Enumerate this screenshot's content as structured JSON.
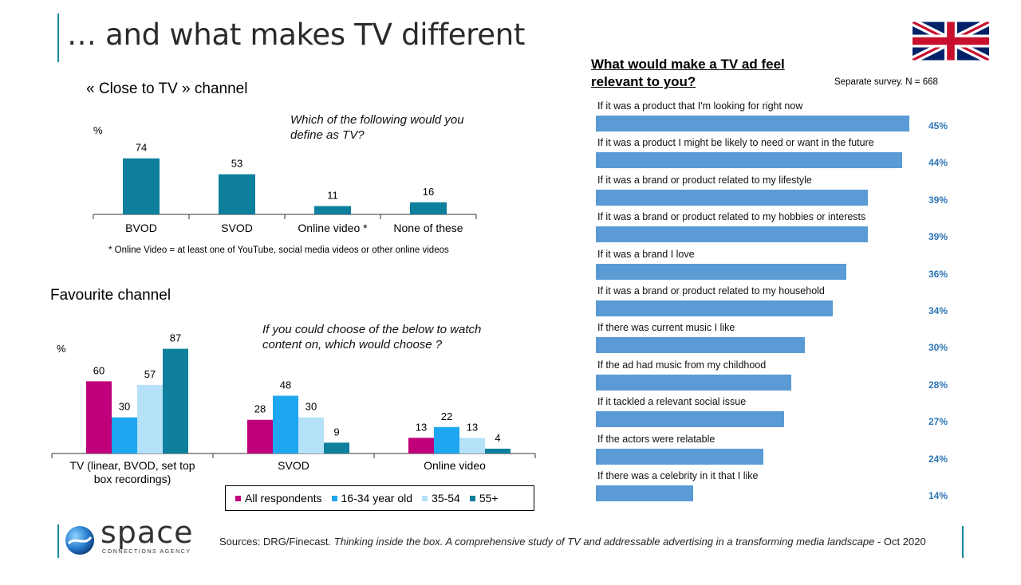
{
  "page": {
    "title": "… and what makes TV different",
    "accent_color": "#1b8aa0"
  },
  "close_to_tv": {
    "section_title": "« Close to TV » channel",
    "unit": "%",
    "question": "Which of the following would you define as TV?",
    "footnote": "* Online Video = at least one of YouTube, social media videos or other online videos"
  },
  "favourite": {
    "section_title": "Favourite channel",
    "unit": "%",
    "question": "If you could choose of the below to watch content on, which would choose ?"
  },
  "relevance": {
    "title": "What would make a TV ad feel relevant to you?",
    "survey_note": "Separate survey.  N = 668",
    "items": [
      {
        "label": "If it was a product that I'm looking for right now",
        "value": 45,
        "value_label": "45%"
      },
      {
        "label": "If it was a product I might be likely to need or want in the future",
        "value": 44,
        "value_label": "44%"
      },
      {
        "label": "If it was a brand or product related to my lifestyle",
        "value": 39,
        "value_label": "39%"
      },
      {
        "label": "If it was a brand or product related to my hobbies or interests",
        "value": 39,
        "value_label": "39%"
      },
      {
        "label": "If it was a brand I love",
        "value": 36,
        "value_label": "36%"
      },
      {
        "label": "If it was a brand or product related to my household",
        "value": 34,
        "value_label": "34%"
      },
      {
        "label": "If there was current music I like",
        "value": 30,
        "value_label": "30%"
      },
      {
        "label": "If the ad had music from my childhood",
        "value": 28,
        "value_label": "28%"
      },
      {
        "label": "If it tackled a relevant social issue",
        "value": 27,
        "value_label": "27%"
      },
      {
        "label": "If the actors were relatable",
        "value": 24,
        "value_label": "24%"
      },
      {
        "label": "If there was a celebrity in it that I like",
        "value": 14,
        "value_label": "14%"
      }
    ]
  },
  "footer": {
    "logo_name": "space",
    "logo_tagline": "CONNECTIONS AGENCY",
    "source_prefix": "Sources: DRG/Finecast",
    "source_italic": ". Thinking inside the box. A comprehensive  study of TV and addressable advertising in a transforming  media landscape",
    "source_suffix": " - Oct 2020"
  },
  "flag": {
    "icon": "uk-flag-icon"
  },
  "chart_data": [
    {
      "type": "bar",
      "title": "« Close to TV » channel",
      "ylabel": "%",
      "categories": [
        "BVOD",
        "SVOD",
        "Online video *",
        "None of these"
      ],
      "values": [
        74,
        53,
        11,
        16
      ],
      "color": "#0e7f9c",
      "ylim": [
        0,
        100
      ]
    },
    {
      "type": "bar",
      "title": "Favourite channel",
      "ylabel": "%",
      "categories": [
        "TV (linear, BVOD, set top box recordings)",
        "SVOD",
        "Online video"
      ],
      "series": [
        {
          "name": "All respondents",
          "color": "#c0007a",
          "values": [
            60,
            28,
            13
          ]
        },
        {
          "name": "16-34 year old",
          "color": "#1ea7f0",
          "values": [
            30,
            48,
            22
          ]
        },
        {
          "name": "35-54",
          "color": "#b5e1f9",
          "values": [
            57,
            30,
            13
          ]
        },
        {
          "name": "55+",
          "color": "#0e7f9c",
          "values": [
            87,
            9,
            4
          ]
        }
      ],
      "ylim": [
        0,
        100
      ],
      "legend": "bottom-right"
    },
    {
      "type": "bar",
      "orientation": "horizontal",
      "title": "What would make a TV ad feel relevant to you?",
      "categories": [
        "If it was a product that I'm looking for right now",
        "If it was a product I might be likely to need or want in the future",
        "If it was a brand or product related to my lifestyle",
        "If it was a brand or product related to my hobbies or interests",
        "If it was a brand I love",
        "If it was a brand or product related to my household",
        "If there was current music I like",
        "If the ad had music from my childhood",
        "If it tackled a relevant social issue",
        "If the actors were relatable",
        "If there was a celebrity in it that I like"
      ],
      "values": [
        45,
        44,
        39,
        39,
        36,
        34,
        30,
        28,
        27,
        24,
        14
      ],
      "unit": "%",
      "color": "#5b9bd5"
    }
  ]
}
